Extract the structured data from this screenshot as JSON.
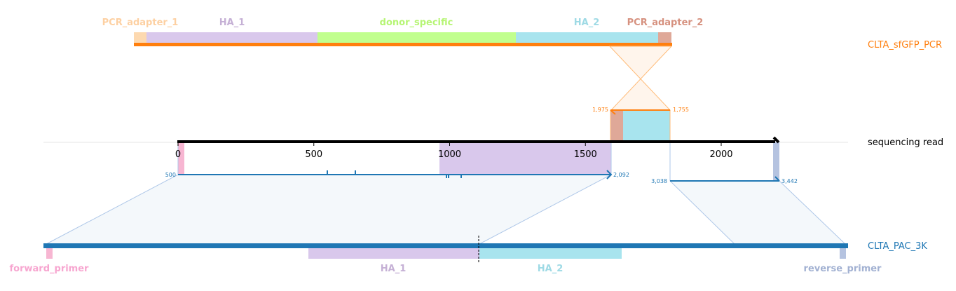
{
  "colors": {
    "read": "#000000",
    "pcr": "#ff7f0e",
    "pac": "#1f77b4",
    "pcr_adapter_1": "#fdd9b0",
    "ha_1": "#d9c8ec",
    "donor_specific": "#c1ff8e",
    "ha_2": "#a8e4ee",
    "pcr_adapter_2": "#dfa898",
    "forward_primer": "#f7b6d2",
    "reverse_primer": "#b5c3e0",
    "pcr_adapter_1_label": "#fdd0a2",
    "ha_1_label": "#c5b0d5",
    "donor_specific_label": "#b6f574",
    "ha_2_label": "#9edae5",
    "pcr_adapter_2_label": "#d6917f",
    "forward_primer_label": "#f7a6d0",
    "reverse_primer_label": "#a2b1d2"
  },
  "tracks": {
    "pcr": "CLTA_sfGFP_PCR",
    "read": "sequencing read",
    "pac": "CLTA_PAC_3K"
  },
  "features": {
    "pcr_adapter_1": "PCR_adapter_1",
    "ha_1": "HA_1",
    "donor_specific": "donor_specific",
    "ha_2": "HA_2",
    "pcr_adapter_2": "PCR_adapter_2",
    "forward_primer": "forward_primer",
    "pac_ha_1": "HA_1",
    "pac_ha_2": "HA_2",
    "reverse_primer": "reverse_primer"
  },
  "axis": {
    "ticks": [
      "0",
      "500",
      "1000",
      "1500",
      "2000"
    ]
  },
  "alignments": {
    "pcr_start": "1,975",
    "pcr_end": "1,755",
    "pac1_start": "500",
    "pac1_end": "2,092",
    "pac2_start": "3,038",
    "pac2_end": "3,442"
  }
}
